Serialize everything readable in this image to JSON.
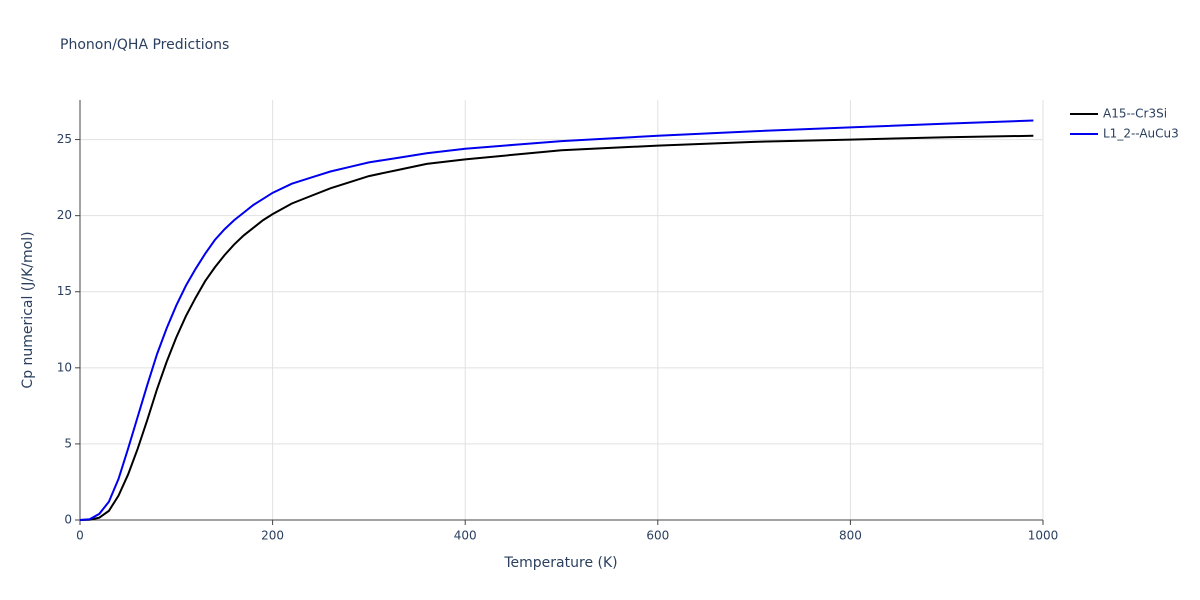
{
  "chart_data": {
    "type": "line",
    "title": "Phonon/QHA Predictions",
    "x_label": "Temperature (K)",
    "y_label": "Cp numerical (J/K/mol)",
    "x": [
      0,
      10,
      20,
      30,
      40,
      50,
      60,
      70,
      80,
      90,
      100,
      110,
      120,
      130,
      140,
      150,
      160,
      170,
      180,
      190,
      200,
      220,
      240,
      260,
      280,
      300,
      330,
      360,
      400,
      450,
      500,
      600,
      700,
      800,
      900,
      990
    ],
    "series": [
      {
        "name": "A15--Cr3Si",
        "color": "#000000",
        "values": [
          0,
          0.02,
          0.15,
          0.6,
          1.6,
          3.0,
          4.7,
          6.6,
          8.6,
          10.4,
          12.0,
          13.4,
          14.6,
          15.7,
          16.6,
          17.4,
          18.1,
          18.7,
          19.2,
          19.7,
          20.1,
          20.8,
          21.3,
          21.8,
          22.2,
          22.6,
          23.0,
          23.4,
          23.7,
          24.0,
          24.3,
          24.6,
          24.85,
          25.0,
          25.15,
          25.25
        ]
      },
      {
        "name": "L1_2--AuCu3",
        "color": "#0000ee",
        "values": [
          0,
          0.05,
          0.4,
          1.2,
          2.7,
          4.7,
          6.8,
          8.9,
          10.9,
          12.6,
          14.1,
          15.4,
          16.5,
          17.5,
          18.4,
          19.1,
          19.7,
          20.2,
          20.7,
          21.1,
          21.5,
          22.1,
          22.5,
          22.9,
          23.2,
          23.5,
          23.8,
          24.1,
          24.4,
          24.65,
          24.9,
          25.25,
          25.55,
          25.8,
          26.05,
          26.25
        ]
      }
    ],
    "xlim": [
      0,
      1000
    ],
    "xticks": [
      0,
      200,
      400,
      600,
      800,
      1000
    ],
    "ylim": [
      0,
      27.6
    ],
    "yticks": [
      0,
      5,
      10,
      15,
      20,
      25
    ],
    "grid": true,
    "legend": "top-right-outside"
  }
}
